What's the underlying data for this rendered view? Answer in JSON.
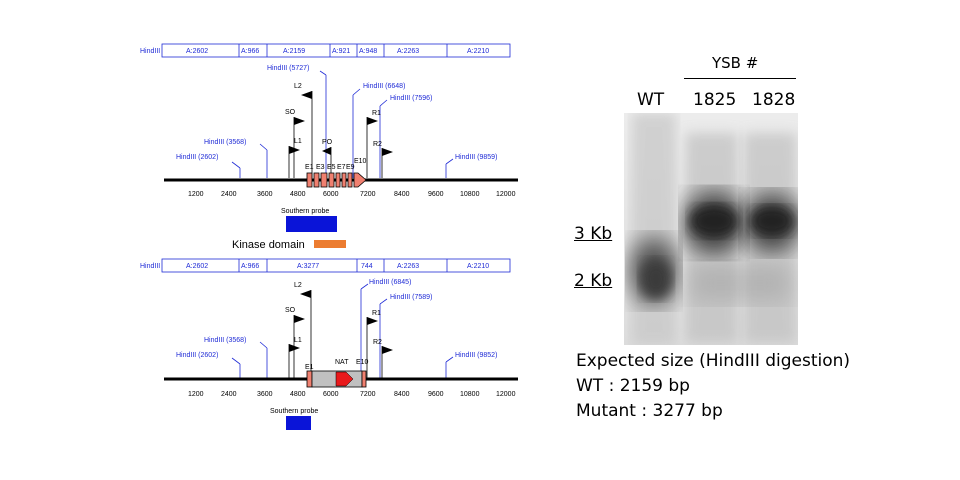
{
  "wt_map": {
    "fragment_bar": [
      "HindIII",
      "A:2602",
      "A:966",
      "A:2159",
      "A:921",
      "A:948",
      "A:2263",
      "A:2210"
    ],
    "sites": [
      "HindIII (2602)",
      "HindIII (3568)",
      "HindIII (5727)",
      "HindIII (6648)",
      "HindIII (7596)",
      "HindIII (9859)"
    ],
    "primers": [
      "L2",
      "SO",
      "L1",
      "PO",
      "R1",
      "R2"
    ],
    "exons": [
      "E1",
      "E3",
      "E5",
      "E7",
      "E9",
      "E10"
    ],
    "ticks": [
      "1200",
      "2400",
      "3600",
      "4800",
      "6000",
      "7200",
      "8400",
      "9600",
      "10800",
      "12000"
    ],
    "probe_label": "Southern probe",
    "domain_label": "Kinase domain"
  },
  "mut_map": {
    "fragment_bar": [
      "HindIII",
      "A:2602",
      "A:966",
      "A:3277",
      "744",
      "A:2263",
      "A:2210"
    ],
    "sites": [
      "HindIII (2602)",
      "HindIII (3568)",
      "HindIII (6845)",
      "HindIII (7589)",
      "HindIII (9852)"
    ],
    "primers": [
      "L2",
      "SO",
      "L1",
      "R1",
      "R2"
    ],
    "exons": [
      "E1",
      "NAT",
      "E10"
    ],
    "ticks": [
      "1200",
      "2400",
      "3600",
      "4800",
      "6000",
      "7200",
      "8400",
      "9600",
      "10800",
      "12000"
    ],
    "probe_label": "Southern probe"
  },
  "gel": {
    "group_title": "YSB #",
    "lanes": [
      "WT",
      "1825",
      "1828"
    ],
    "markers": [
      "3 Kb",
      "2 Kb"
    ],
    "expected_title": "Expected size (HindIII digestion)",
    "wt_size": "WT : 2159 bp",
    "mutant_size": "Mutant : 3277 bp"
  },
  "colors": {
    "label_blue": "#1f2bd6",
    "exon_salmon": "#f08070",
    "probe_blue": "#0a14d8",
    "domain_orange": "#ec7c30",
    "nat_red": "#e8191b",
    "cassette_gray": "#c0c0c0"
  }
}
